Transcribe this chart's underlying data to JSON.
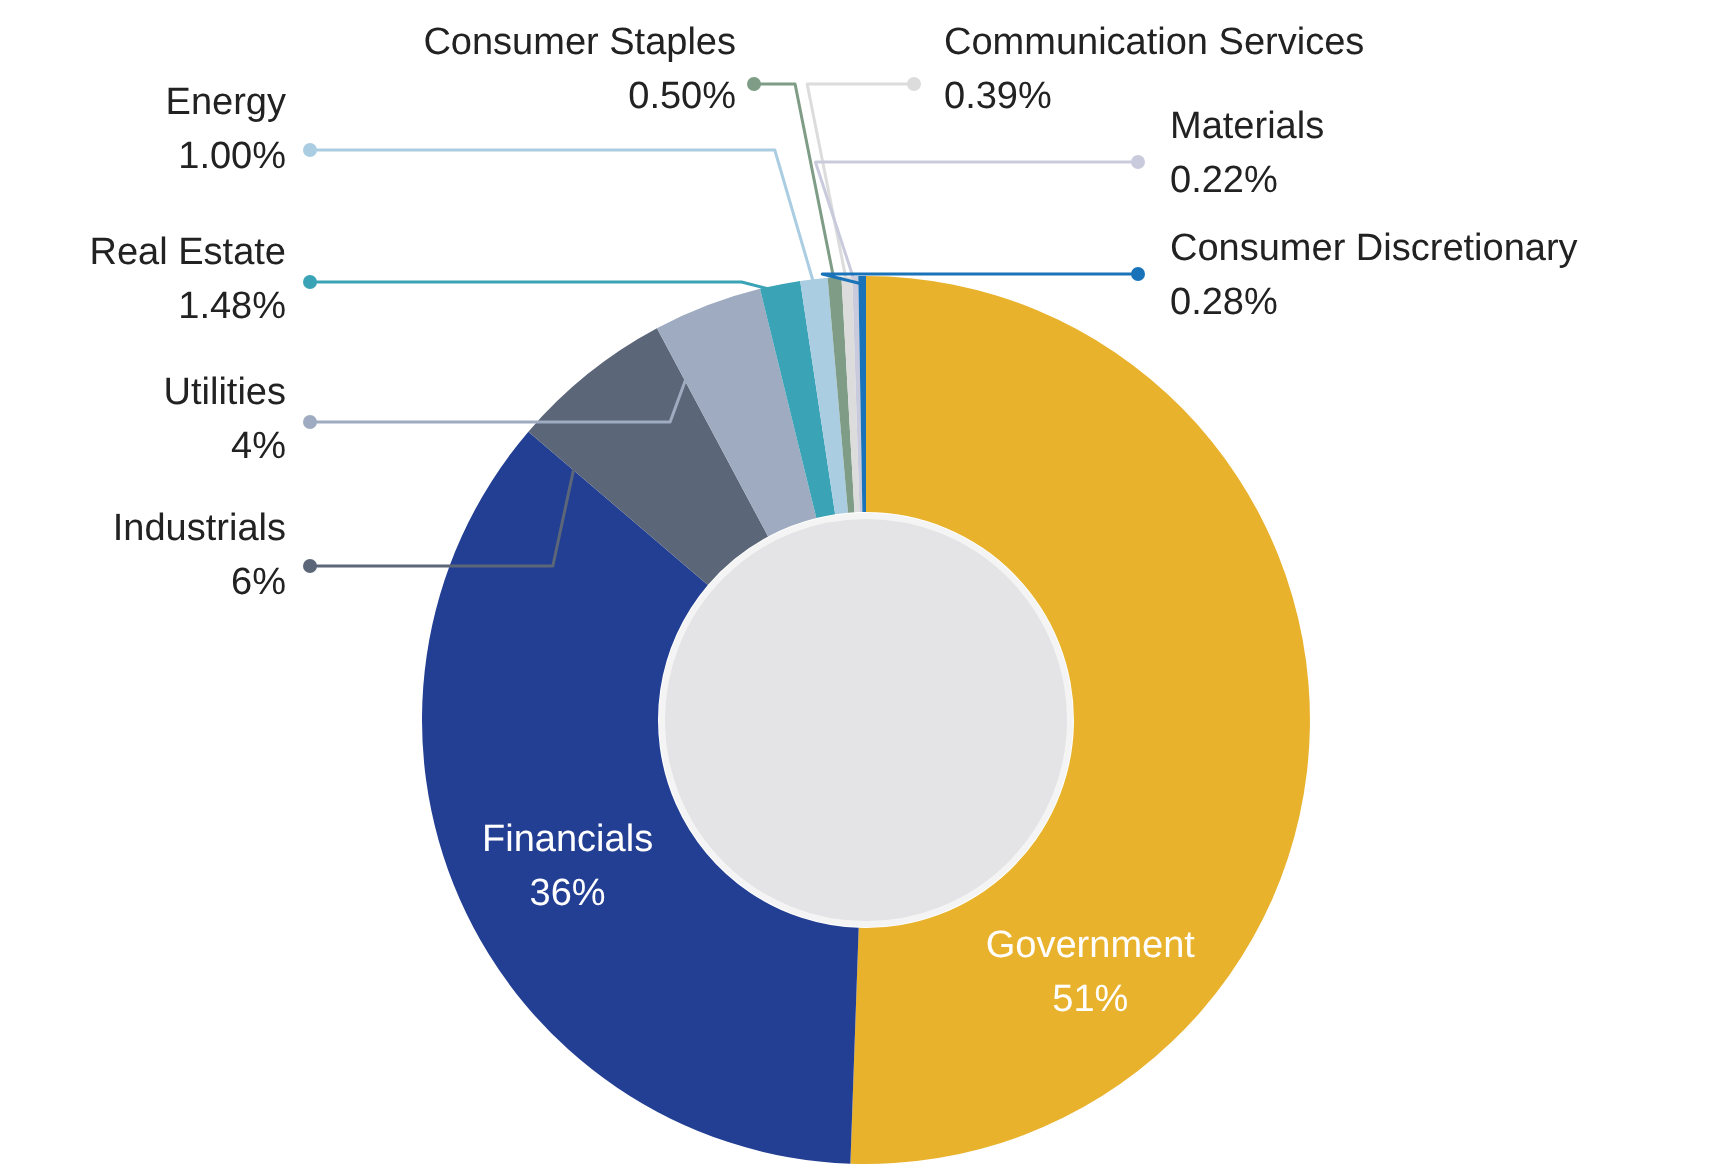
{
  "chart_data": {
    "type": "donut",
    "categories": [
      "Government",
      "Financials",
      "Industrials",
      "Utilities",
      "Real Estate",
      "Energy",
      "Consumer Staples",
      "Communication Services",
      "Materials",
      "Consumer Discretionary"
    ],
    "values": [
      51,
      36,
      6,
      4,
      1.48,
      1.0,
      0.5,
      0.39,
      0.22,
      0.28
    ],
    "value_labels": [
      "51%",
      "36%",
      "6%",
      "4%",
      "1.48%",
      "1.00%",
      "0.50%",
      "0.39%",
      "0.22%",
      "0.28%"
    ],
    "colors": [
      "#e9b22d",
      "#233f94",
      "#5b6679",
      "#9eabc0",
      "#3aa3b6",
      "#abcde2",
      "#7f9c86",
      "#dcdcdc",
      "#c9cbdc",
      "#1a73b8"
    ]
  }
}
